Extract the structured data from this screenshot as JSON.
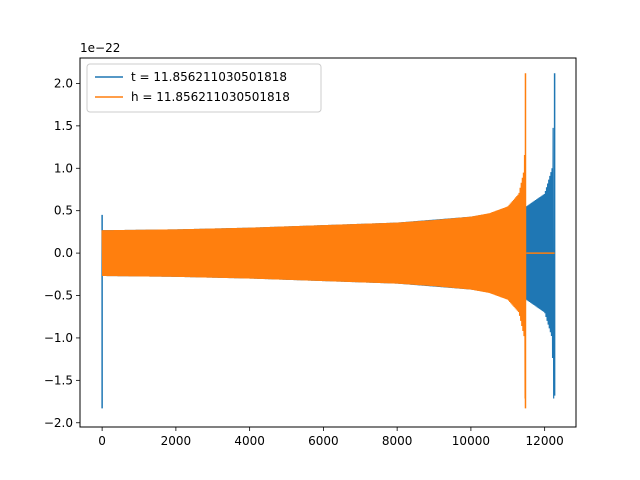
{
  "chart_data": {
    "type": "line",
    "offset_text": "1e−22",
    "xlim": [
      -600,
      12850
    ],
    "ylim": [
      -2.05,
      2.3
    ],
    "x_ticks": [
      0,
      2000,
      4000,
      6000,
      8000,
      10000,
      12000
    ],
    "x_tick_labels": [
      "0",
      "2000",
      "4000",
      "6000",
      "8000",
      "10000",
      "12000"
    ],
    "y_ticks": [
      -2.0,
      -1.5,
      -1.0,
      -0.5,
      0.0,
      0.5,
      1.0,
      1.5,
      2.0
    ],
    "y_tick_labels": [
      "−2.0",
      "−1.5",
      "−1.0",
      "−0.5",
      "0.0",
      "0.5",
      "1.0",
      "1.5",
      "2.0"
    ],
    "grid": false,
    "legend_position": "top-left",
    "series": [
      {
        "name": "t = 11.856211030501818",
        "color": "#1f77b4",
        "description_points": {
          "start_x": 0,
          "start_spike": [
            -1.83,
            0.45
          ],
          "envelope_x": [
            0,
            2000,
            4000,
            6000,
            8000,
            10000,
            11000,
            11500,
            12000,
            12200,
            12270
          ],
          "envelope_y": [
            0.27,
            0.28,
            0.3,
            0.33,
            0.36,
            0.43,
            0.5,
            0.55,
            0.7,
            1.0,
            2.12
          ],
          "end_x": 12270,
          "end_spike": [
            -1.68,
            2.12
          ]
        }
      },
      {
        "name": "h = 11.856211030501818",
        "color": "#ff7f0e",
        "description_points": {
          "envelope_x": [
            0,
            2000,
            4000,
            6000,
            8000,
            9000,
            10000,
            10500,
            11000,
            11300,
            11450,
            11480
          ],
          "envelope_y": [
            0.27,
            0.28,
            0.3,
            0.33,
            0.36,
            0.39,
            0.43,
            0.47,
            0.55,
            0.7,
            1.0,
            2.12
          ],
          "end_x": 11480,
          "end_spike": [
            -1.83,
            2.12
          ],
          "flat_from_x": 11500,
          "flat_to_x": 12270,
          "flat_value": 0.0
        }
      }
    ]
  }
}
